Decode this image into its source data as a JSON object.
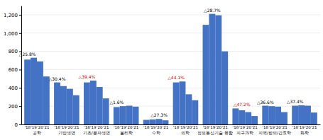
{
  "chart_data": {
    "type": "bar",
    "categories": [
      "공학",
      "기반생명",
      "기초/분자생명",
      "물리학",
      "수학",
      "의학",
      "정보통신기술·융합",
      "지구과학",
      "지역/한의/간호학",
      "화학"
    ],
    "series": [
      {
        "name": "'18",
        "color": "#4472C4",
        "values": [
          710,
          460,
          460,
          190,
          50,
          460,
          1090,
          175,
          205,
          205
        ]
      },
      {
        "name": "'19",
        "color": "#4472C4",
        "values": [
          730,
          420,
          480,
          200,
          55,
          470,
          1210,
          155,
          200,
          210
        ]
      },
      {
        "name": "'20",
        "color": "#4472C4",
        "values": [
          690,
          390,
          410,
          205,
          60,
          330,
          1195,
          135,
          195,
          205
        ]
      },
      {
        "name": "'21",
        "color": "#4472C4",
        "values": [
          525,
          320,
          285,
          195,
          45,
          265,
          800,
          92,
          135,
          130
        ]
      }
    ],
    "annotations": [
      {
        "text": "△25.8%",
        "color": "#000000",
        "category": "공학",
        "series": "'18"
      },
      {
        "text": "△30.4%",
        "color": "#000000",
        "category": "기반생명",
        "series": "'18"
      },
      {
        "text": "△39.4%",
        "color": "#cc0000",
        "category": "기초/분자생명",
        "series": "'18"
      },
      {
        "text": "△1.6%",
        "color": "#000000",
        "category": "물리학",
        "series": "'18"
      },
      {
        "text": "△27.3%",
        "color": "#000000",
        "category": "수학",
        "series": "'20"
      },
      {
        "text": "△44.1%",
        "color": "#cc0000",
        "category": "의학",
        "series": "'18"
      },
      {
        "text": "△28.7%",
        "color": "#000000",
        "category": "정보통신기술·융합",
        "series": "'19"
      },
      {
        "text": "△47.2%",
        "color": "#cc0000",
        "category": "지구과학",
        "series": "'19"
      },
      {
        "text": "△36.6%",
        "color": "#000000",
        "category": "지역/한의/간호학",
        "series": "'18"
      },
      {
        "text": "△37.4%",
        "color": "#000000",
        "category": "화학",
        "series": "'18"
      }
    ],
    "ylim": [
      0,
      1300
    ],
    "yticks": [
      0,
      200,
      400,
      600,
      800,
      {
        "value": 1000,
        "label": "1,000"
      },
      {
        "value": 1200,
        "label": "1,200"
      }
    ],
    "grid": true
  }
}
